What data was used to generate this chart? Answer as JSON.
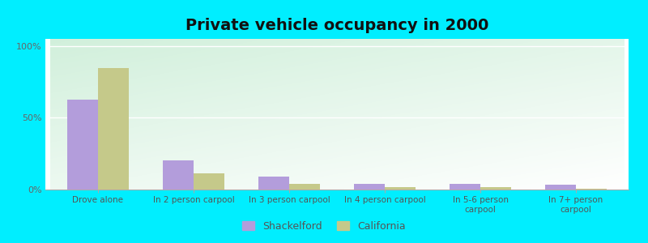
{
  "title": "Private vehicle occupancy in 2000",
  "categories": [
    "Drove alone",
    "In 2 person carpool",
    "In 3 person carpool",
    "In 4 person carpool",
    "In 5-6 person\ncarpool",
    "In 7+ person\ncarpool"
  ],
  "shackelford": [
    0.625,
    0.205,
    0.09,
    0.04,
    0.038,
    0.033
  ],
  "california": [
    0.845,
    0.115,
    0.037,
    0.018,
    0.016,
    0.008
  ],
  "shackelford_color": "#b39ddb",
  "california_color": "#c5c98a",
  "outer_bg": "#00eeff",
  "yticks": [
    0,
    0.5,
    1.0
  ],
  "ytick_labels": [
    "0%",
    "50%",
    "100%"
  ],
  "bar_width": 0.32,
  "title_fontsize": 14,
  "legend_shackelford": "Shackelford",
  "legend_california": "California"
}
